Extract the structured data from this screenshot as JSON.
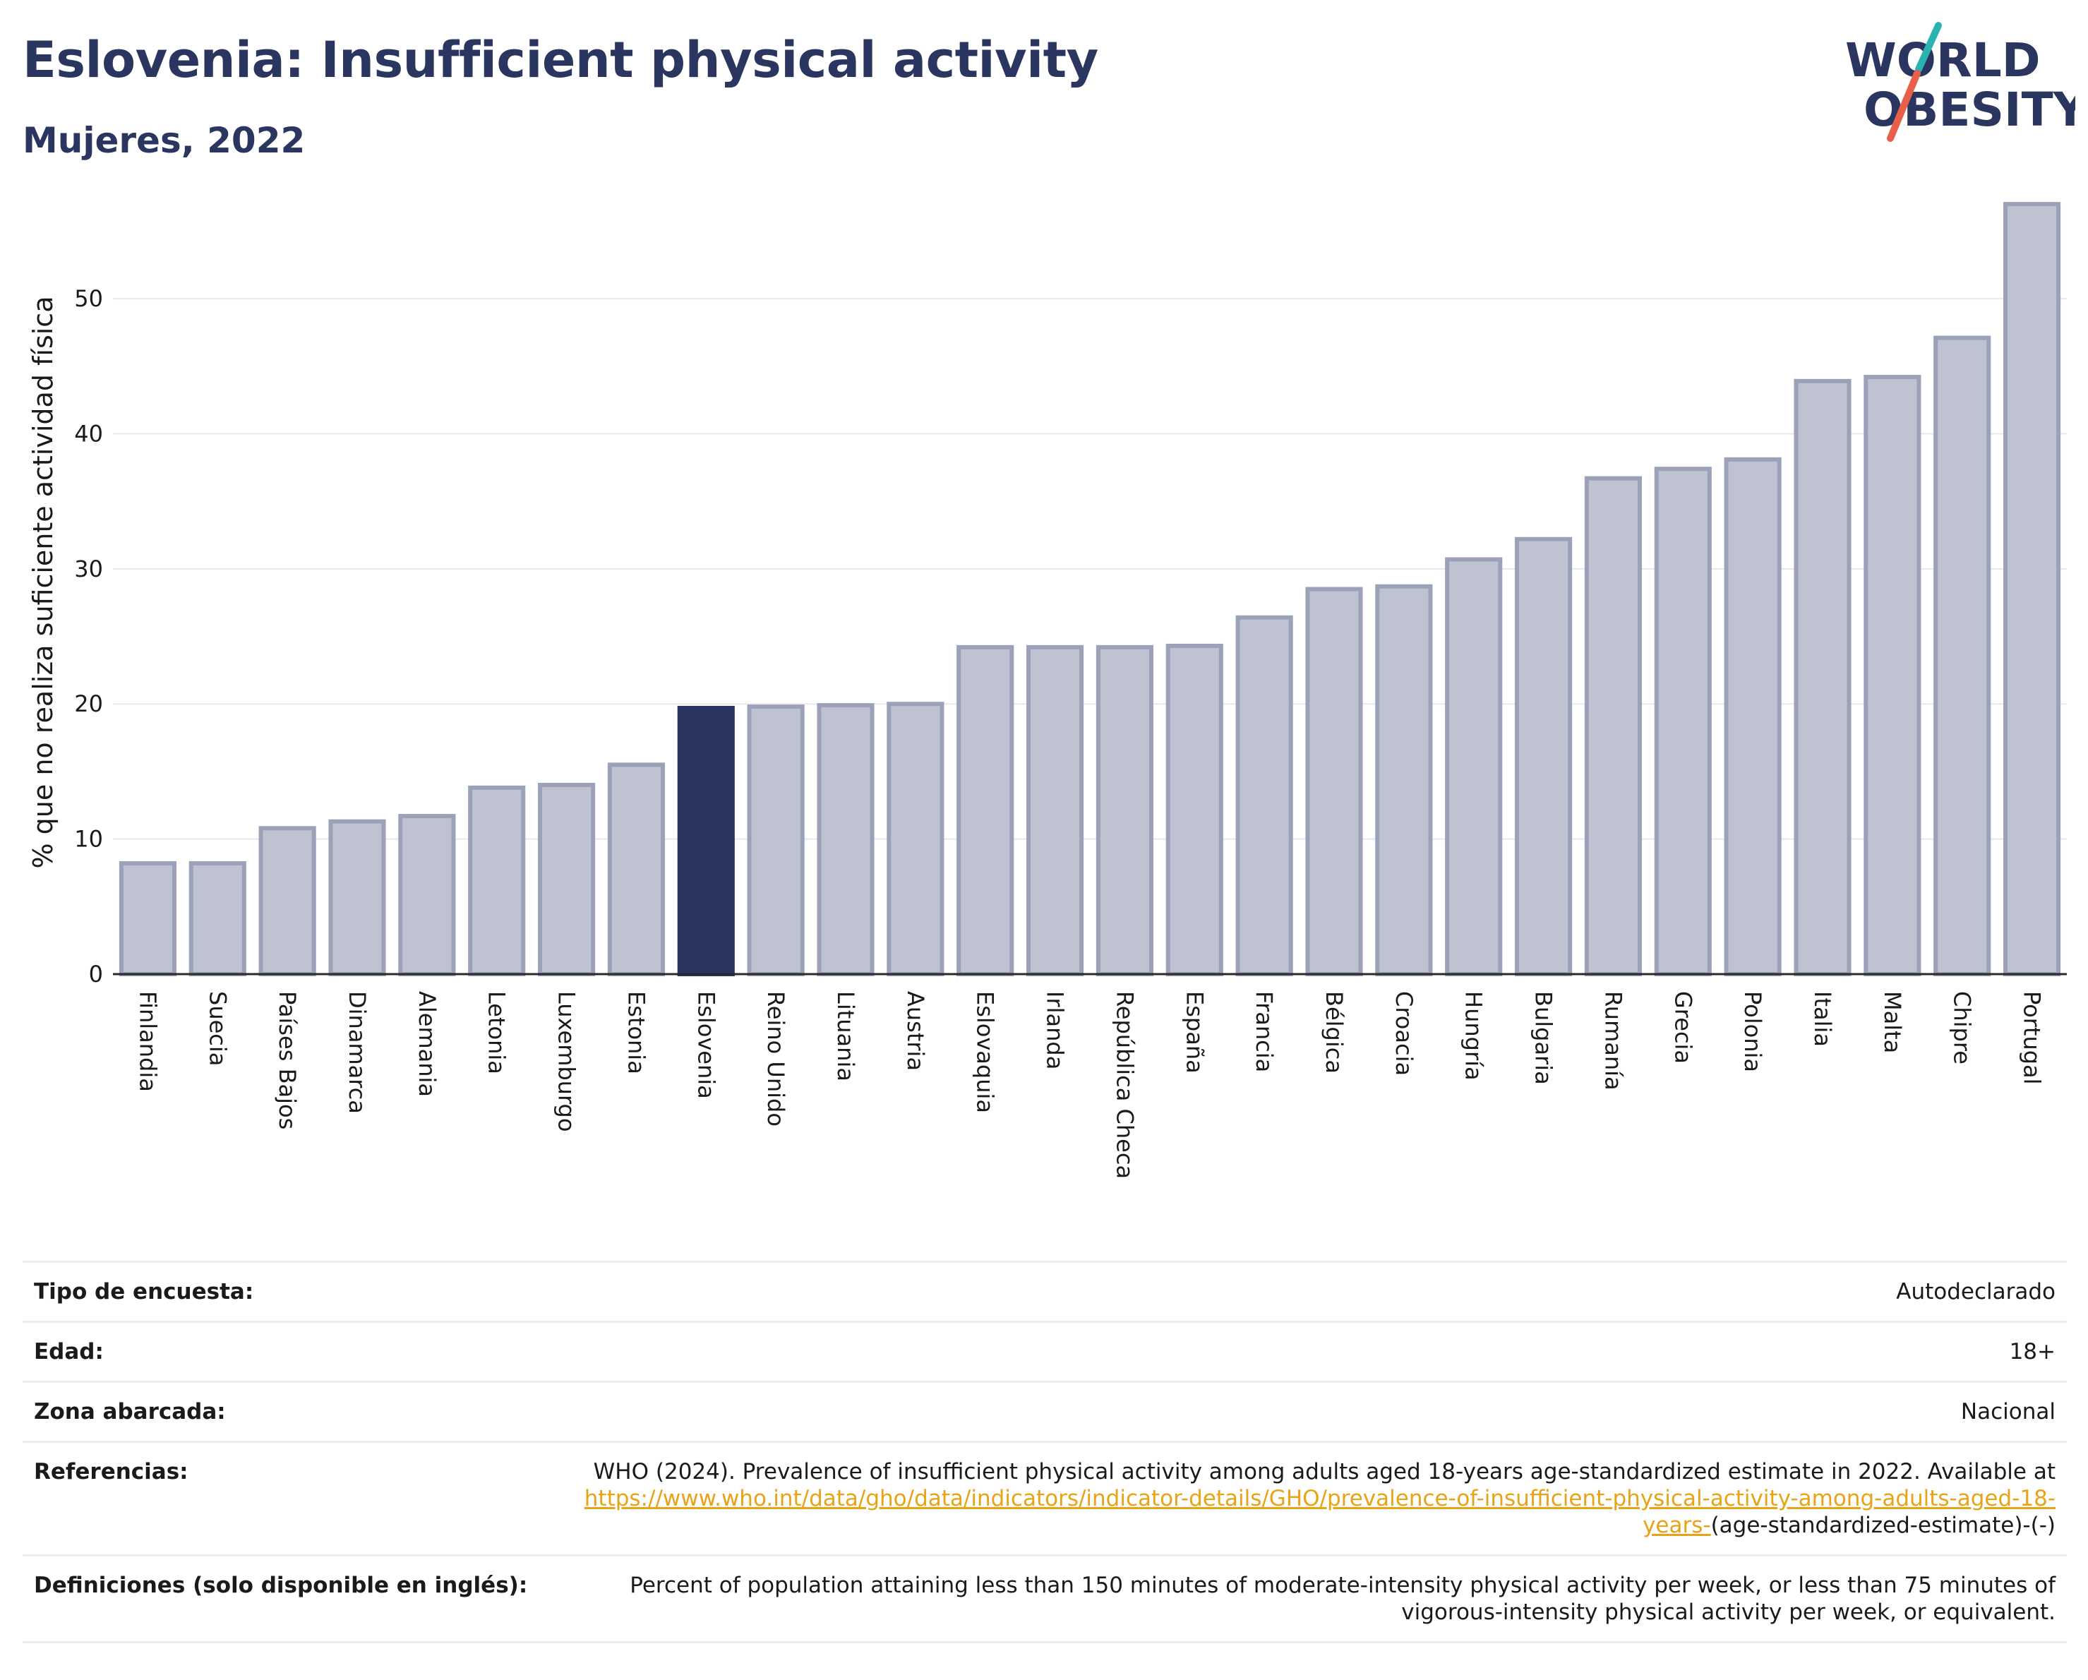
{
  "header": {
    "title": "Eslovenia: Insufficient physical activity",
    "subtitle": "Mujeres, 2022"
  },
  "logo": {
    "line1": "WORLD",
    "line2": "OBESITY",
    "colors": {
      "text": "#2a365f",
      "slash_top": "#2ab3b1",
      "slash_bottom": "#e8604c"
    }
  },
  "chart_data": {
    "type": "bar",
    "title": "",
    "xlabel": "",
    "ylabel": "% que no realiza suficiente actividad física",
    "ylim": [
      0,
      58
    ],
    "yticks": [
      0,
      10,
      20,
      30,
      40,
      50
    ],
    "grid": true,
    "highlight": "Eslovenia",
    "colors": {
      "bar": "#bfc3d1",
      "bar_edge": "#9aa1b8",
      "highlight": "#2a365f",
      "grid": "#e6e8ee",
      "axis": "#2a2a2a"
    },
    "categories": [
      "Finlandia",
      "Suecia",
      "Países Bajos",
      "Dinamarca",
      "Alemania",
      "Letonia",
      "Luxemburgo",
      "Estonia",
      "Eslovenia",
      "Reino Unido",
      "Lituania",
      "Austria",
      "Eslovaquia",
      "Irlanda",
      "República Checa",
      "España",
      "Francia",
      "Bélgica",
      "Croacia",
      "Hungría",
      "Bulgaria",
      "Rumanía",
      "Grecia",
      "Polonia",
      "Italia",
      "Malta",
      "Chipre",
      "Portugal"
    ],
    "values": [
      8.2,
      8.2,
      10.8,
      11.3,
      11.7,
      13.8,
      14.0,
      15.5,
      19.7,
      19.8,
      19.9,
      20.0,
      24.2,
      24.2,
      24.2,
      24.3,
      26.4,
      28.5,
      28.7,
      30.7,
      32.2,
      36.7,
      37.4,
      38.1,
      43.9,
      44.2,
      47.1,
      57.0
    ]
  },
  "table": {
    "rows": [
      {
        "key": "Tipo de encuesta:",
        "value": "Autodeclarado"
      },
      {
        "key": "Edad:",
        "value": "18+"
      },
      {
        "key": "Zona abarcada:",
        "value": "Nacional"
      },
      {
        "key": "Referencias:",
        "value_pre": "WHO (2024). Prevalence of insufficient physical activity among adults aged 18-years age-standardized estimate in 2022. Available at ",
        "value_link": "https://www.who.int/data/gho/data/indicators/indicator-details/GHO/prevalence-of-insufficient-physical-activity-among-adults-aged-18-years-",
        "value_post": "(age-standardized-estimate)-(-)"
      },
      {
        "key": "Definiciones (solo disponible en inglés):",
        "value": "Percent of population attaining less than 150 minutes of moderate-intensity physical activity per week, or less than 75 minutes of vigorous-intensity physical activity per week, or equivalent."
      }
    ]
  }
}
